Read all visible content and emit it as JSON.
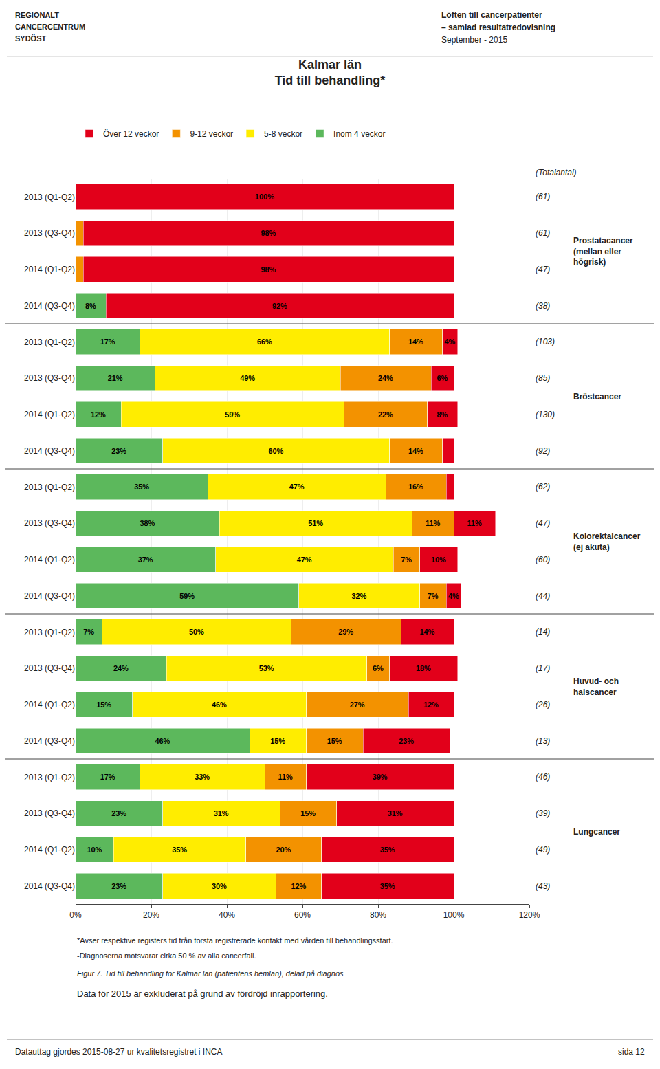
{
  "chart_data": {
    "type": "bar",
    "orientation": "horizontal",
    "stacked": true,
    "data_labels": true,
    "grid": true,
    "legend": "top",
    "title": "Kalmar län",
    "subtitle": "Tid till behandling*",
    "header": [
      "Löften till cancerpatienter",
      "– samlad resultatredovisning",
      "September - 2015"
    ],
    "logo": [
      "REGIONALT",
      "CANCERCENTRUM",
      "SYDÖST"
    ],
    "totals_label": "(Totalantal)",
    "categories": [
      "2013 (Q1-Q2)",
      "2013 (Q3-Q4)",
      "2014 (Q1-Q2)",
      "2014 (Q3-Q4)",
      "2013 (Q1-Q2)",
      "2013 (Q3-Q4)",
      "2014 (Q1-Q2)",
      "2014 (Q3-Q4)",
      "2013 (Q1-Q2)",
      "2013 (Q3-Q4)",
      "2014 (Q1-Q2)",
      "2014 (Q3-Q4)",
      "2013 (Q1-Q2)",
      "2013 (Q3-Q4)",
      "2014 (Q1-Q2)",
      "2014 (Q3-Q4)",
      "2013 (Q1-Q2)",
      "2013 (Q3-Q4)",
      "2014 (Q1-Q2)",
      "2014 (Q3-Q4)"
    ],
    "groups": [
      "Prostatacancer\n(mellan eller\nhögrisk)",
      "Prostatacancer\n(mellan eller\nhögrisk)",
      "Prostatacancer\n(mellan eller\nhögrisk)",
      "Prostatacancer\n(mellan eller\nhögrisk)",
      "Bröstcancer",
      "Bröstcancer",
      "Bröstcancer",
      "Bröstcancer",
      "Kolorektalcancer\n(ej akuta)",
      "Kolorektalcancer\n(ej akuta)",
      "Kolorektalcancer\n(ej akuta)",
      "Kolorektalcancer\n(ej akuta)",
      "Huvud- och\nhalscancer",
      "Huvud- och\nhalscancer",
      "Huvud- och\nhalscancer",
      "Huvud- och\nhalscancer",
      "Lungcancer",
      "Lungcancer",
      "Lungcancer",
      "Lungcancer"
    ],
    "totals": [
      "(61)",
      "(61)",
      "(47)",
      "(38)",
      "(103)",
      "(85)",
      "(130)",
      "(92)",
      "(62)",
      "(47)",
      "(60)",
      "(44)",
      "(14)",
      "(17)",
      "(26)",
      "(13)",
      "(46)",
      "(39)",
      "(49)",
      "(43)"
    ],
    "series": [
      {
        "name": "Inom 4 veckor",
        "color": "#5cb85c",
        "values": [
          0,
          0,
          0,
          8,
          17,
          21,
          12,
          23,
          35,
          38,
          37,
          59,
          7,
          24,
          15,
          46,
          17,
          23,
          10,
          23
        ],
        "value_labels": [
          null,
          null,
          null,
          "8%",
          "17%",
          "21%",
          "12%",
          "23%",
          "35%",
          "38%",
          "37%",
          "59%",
          "7%",
          "24%",
          "15%",
          "46%",
          "17%",
          "23%",
          "10%",
          "23%"
        ]
      },
      {
        "name": "5-8 veckor",
        "color": "#ffed00",
        "values": [
          0,
          0,
          0,
          0,
          66,
          49,
          59,
          60,
          47,
          51,
          47,
          32,
          50,
          53,
          46,
          15,
          33,
          31,
          35,
          30
        ],
        "value_labels": [
          null,
          null,
          null,
          null,
          "66%",
          "49%",
          "59%",
          "60%",
          "47%",
          "51%",
          "47%",
          "32%",
          "50%",
          "53%",
          "46%",
          "15%",
          "33%",
          "31%",
          "35%",
          "30%"
        ]
      },
      {
        "name": "9-12 veckor",
        "color": "#f39200",
        "values": [
          0,
          2,
          2,
          0,
          14,
          24,
          22,
          14,
          16,
          11,
          7,
          7,
          29,
          6,
          27,
          15,
          11,
          15,
          20,
          12
        ],
        "value_labels": [
          null,
          null,
          null,
          null,
          "14%",
          "24%",
          "22%",
          "14%",
          "16%",
          "11%",
          "7%",
          "7%",
          "29%",
          "6%",
          "27%",
          "15%",
          "11%",
          "15%",
          "20%",
          "12%"
        ]
      },
      {
        "name": "Över 12 veckor",
        "color": "#e2001a",
        "values": [
          100,
          98,
          98,
          92,
          4,
          6,
          8,
          3,
          2,
          11,
          10,
          4,
          14,
          18,
          12,
          23,
          39,
          31,
          35,
          35
        ],
        "value_labels": [
          "100%",
          "98%",
          "98%",
          "92%",
          "4%",
          "6%",
          "8%",
          null,
          null,
          "11%",
          "10%",
          "4%",
          "14%",
          "18%",
          "12%",
          "23%",
          "39%",
          "31%",
          "35%",
          "35%"
        ]
      }
    ],
    "xlim": [
      0,
      120
    ],
    "xticks": [
      {
        "value": 0,
        "label": "0%"
      },
      {
        "value": 20,
        "label": "20%"
      },
      {
        "value": 40,
        "label": "40%"
      },
      {
        "value": 60,
        "label": "60%"
      },
      {
        "value": 80,
        "label": "80%"
      },
      {
        "value": 100,
        "label": "100%"
      },
      {
        "value": 120,
        "label": "120%"
      }
    ],
    "notes": [
      "*Avser respektive registers tid från första registrerade kontakt med vården till behandlingsstart.",
      "-Diagnoserna motsvarar cirka 50 % av alla cancerfall.",
      "Figur 7. Tid till behandling för Kalmar län (patientens hemlän), delad på diagnos",
      "Data för 2015 är exkluderat på grund av fördröjd inrapportering."
    ],
    "footer_left": "Datauttag gjordes 2015-08-27 ur kvalitetsregistret i INCA",
    "footer_right": "sida 12"
  }
}
